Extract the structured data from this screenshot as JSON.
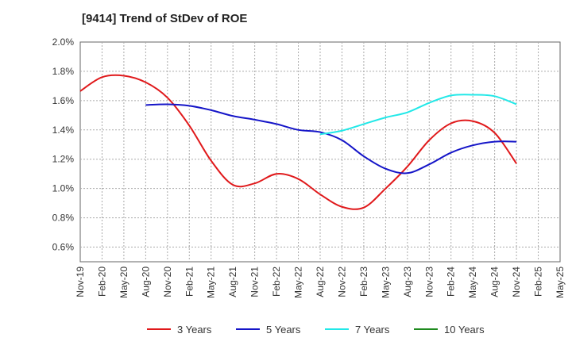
{
  "chart_data": {
    "type": "line",
    "title": "[9414]  Trend of StDev of ROE",
    "xlabel": "",
    "ylabel": "",
    "x_ticks": [
      "Nov-19",
      "Feb-20",
      "May-20",
      "Aug-20",
      "Nov-20",
      "Feb-21",
      "May-21",
      "Aug-21",
      "Nov-21",
      "Feb-22",
      "May-22",
      "Aug-22",
      "Nov-22",
      "Feb-23",
      "May-23",
      "Aug-23",
      "Nov-23",
      "Feb-24",
      "May-24",
      "Aug-24",
      "Nov-24",
      "Feb-25",
      "May-25"
    ],
    "y_ticks": [
      "0.6%",
      "0.8%",
      "1.0%",
      "1.2%",
      "1.4%",
      "1.6%",
      "1.8%",
      "2.0%"
    ],
    "ylim": [
      0.5,
      2.0
    ],
    "grid": true,
    "legend_position": "bottom",
    "series": [
      {
        "name": "3 Years",
        "color": "#e0191b",
        "points": [
          [
            0,
            1.665
          ],
          [
            1,
            1.76
          ],
          [
            2,
            1.77
          ],
          [
            3,
            1.725
          ],
          [
            4,
            1.62
          ],
          [
            5,
            1.43
          ],
          [
            6,
            1.19
          ],
          [
            7,
            1.025
          ],
          [
            8,
            1.035
          ],
          [
            9,
            1.1
          ],
          [
            10,
            1.065
          ],
          [
            11,
            0.96
          ],
          [
            12,
            0.875
          ],
          [
            13,
            0.87
          ],
          [
            14,
            1.0
          ],
          [
            15,
            1.15
          ],
          [
            16,
            1.33
          ],
          [
            17,
            1.445
          ],
          [
            18,
            1.46
          ],
          [
            19,
            1.38
          ],
          [
            20,
            1.17
          ]
        ]
      },
      {
        "name": "5 Years",
        "color": "#1515c8",
        "points": [
          [
            3,
            1.57
          ],
          [
            4,
            1.575
          ],
          [
            5,
            1.565
          ],
          [
            6,
            1.535
          ],
          [
            7,
            1.495
          ],
          [
            8,
            1.47
          ],
          [
            9,
            1.44
          ],
          [
            10,
            1.4
          ],
          [
            11,
            1.385
          ],
          [
            12,
            1.33
          ],
          [
            13,
            1.22
          ],
          [
            14,
            1.135
          ],
          [
            15,
            1.105
          ],
          [
            16,
            1.165
          ],
          [
            17,
            1.245
          ],
          [
            18,
            1.295
          ],
          [
            19,
            1.32
          ],
          [
            20,
            1.32
          ]
        ]
      },
      {
        "name": "7 Years",
        "color": "#22e8e8",
        "points": [
          [
            11,
            1.37
          ],
          [
            12,
            1.395
          ],
          [
            13,
            1.44
          ],
          [
            14,
            1.485
          ],
          [
            15,
            1.52
          ],
          [
            16,
            1.585
          ],
          [
            17,
            1.635
          ],
          [
            18,
            1.64
          ],
          [
            19,
            1.63
          ],
          [
            20,
            1.575
          ]
        ]
      },
      {
        "name": "10 Years",
        "color": "#1e8a1e",
        "points": []
      }
    ]
  }
}
